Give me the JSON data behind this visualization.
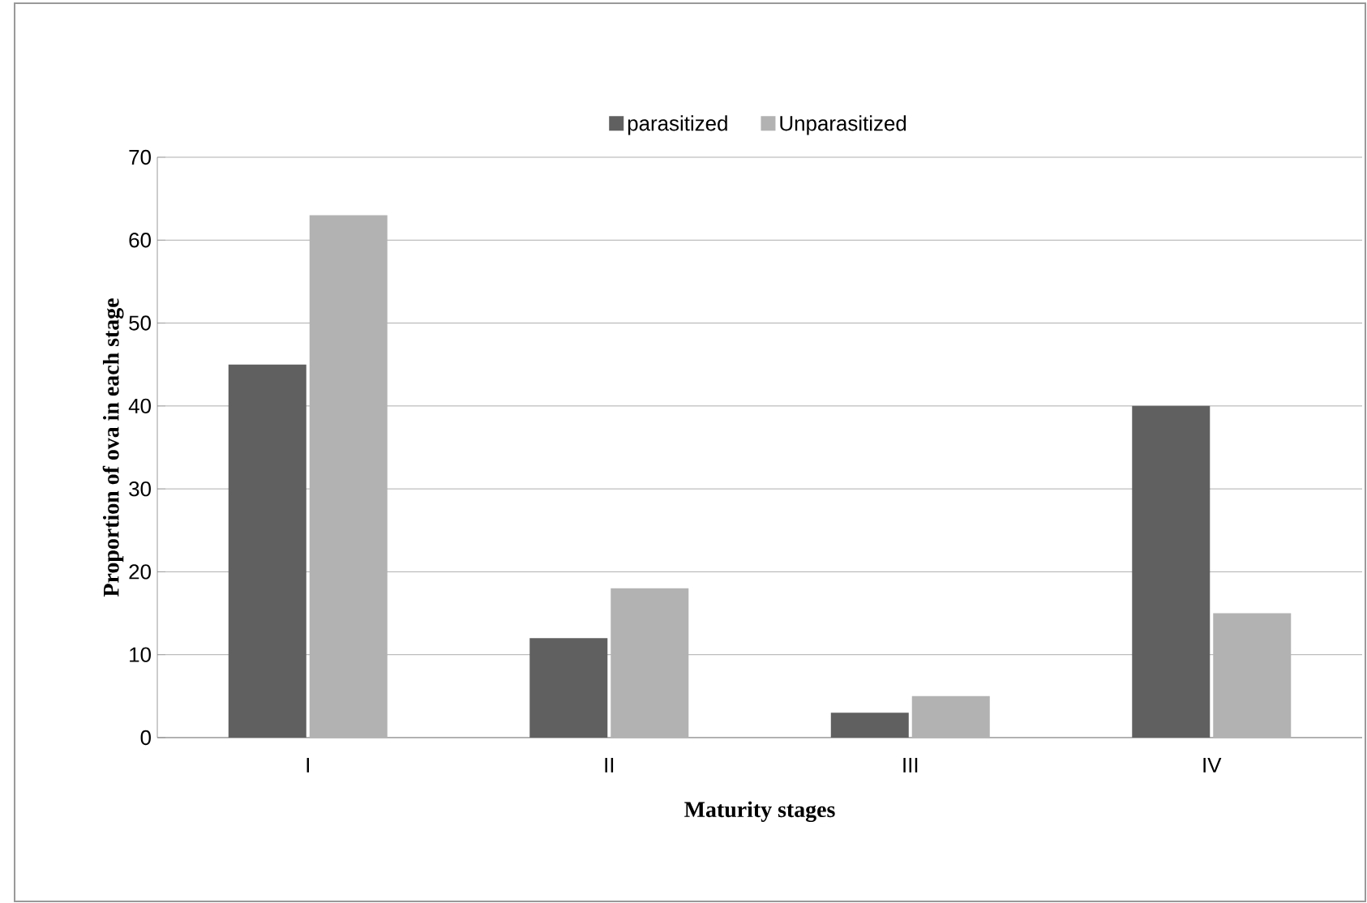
{
  "chart_data": {
    "type": "bar",
    "xlabel": "Maturity stages",
    "ylabel": "Proportion of ova in each stage",
    "categories": [
      "I",
      "II",
      "III",
      "IV"
    ],
    "series": [
      {
        "name": "parasitized",
        "color": "#606060",
        "values": [
          45,
          12,
          3,
          40
        ]
      },
      {
        "name": "Unparasitized",
        "color": "#b2b2b2",
        "values": [
          63,
          18,
          5,
          15
        ]
      }
    ],
    "ylim": [
      0,
      70
    ],
    "yticks": [
      0,
      10,
      20,
      30,
      40,
      50,
      60,
      70
    ],
    "grid": "y",
    "legend": "top"
  }
}
